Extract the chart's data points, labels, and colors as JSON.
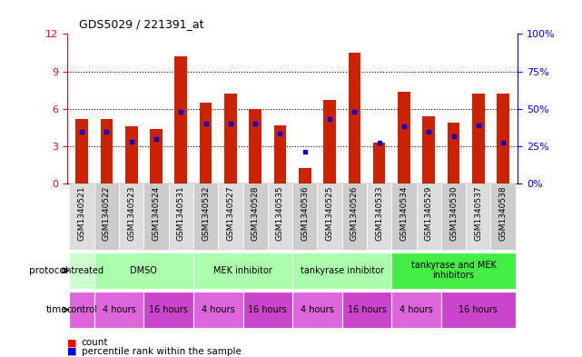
{
  "title": "GDS5029 / 221391_at",
  "samples": [
    "GSM1340521",
    "GSM1340522",
    "GSM1340523",
    "GSM1340524",
    "GSM1340531",
    "GSM1340532",
    "GSM1340527",
    "GSM1340528",
    "GSM1340535",
    "GSM1340536",
    "GSM1340525",
    "GSM1340526",
    "GSM1340533",
    "GSM1340534",
    "GSM1340529",
    "GSM1340530",
    "GSM1340537",
    "GSM1340538"
  ],
  "red_bars": [
    5.2,
    5.2,
    4.6,
    4.4,
    10.2,
    6.5,
    7.2,
    6.0,
    4.7,
    1.3,
    6.7,
    10.5,
    3.3,
    7.4,
    5.4,
    4.9,
    7.2,
    7.2
  ],
  "blue_dots": [
    4.2,
    4.2,
    3.4,
    3.6,
    5.8,
    4.8,
    4.8,
    4.8,
    4.0,
    2.6,
    5.2,
    5.8,
    3.3,
    4.6,
    4.2,
    3.8,
    4.7,
    3.3
  ],
  "ylim_left": [
    0,
    12
  ],
  "yticks_left": [
    0,
    3,
    6,
    9,
    12
  ],
  "yticks_right": [
    0,
    25,
    50,
    75,
    100
  ],
  "bar_color": "#cc2200",
  "dot_color": "#0000cc",
  "tick_bg_colors": [
    "#dddddd",
    "#cccccc",
    "#dddddd",
    "#cccccc",
    "#dddddd",
    "#cccccc",
    "#dddddd",
    "#cccccc",
    "#dddddd",
    "#cccccc",
    "#dddddd",
    "#cccccc",
    "#dddddd",
    "#cccccc",
    "#dddddd",
    "#cccccc",
    "#dddddd",
    "#cccccc"
  ],
  "proto_groups": [
    {
      "label": "untreated",
      "cols": [
        0,
        1
      ],
      "color": "#ccffcc"
    },
    {
      "label": "DMSO",
      "cols": [
        1,
        5
      ],
      "color": "#aaffaa"
    },
    {
      "label": "MEK inhibitor",
      "cols": [
        5,
        9
      ],
      "color": "#aaffaa"
    },
    {
      "label": "tankyrase inhibitor",
      "cols": [
        9,
        13
      ],
      "color": "#aaffaa"
    },
    {
      "label": "tankyrase and MEK\ninhibitors",
      "cols": [
        13,
        18
      ],
      "color": "#44ee44"
    }
  ],
  "time_groups": [
    {
      "label": "control",
      "cols": [
        0,
        1
      ],
      "color": "#dd66dd"
    },
    {
      "label": "4 hours",
      "cols": [
        1,
        3
      ],
      "color": "#dd66dd"
    },
    {
      "label": "16 hours",
      "cols": [
        3,
        5
      ],
      "color": "#cc44cc"
    },
    {
      "label": "4 hours",
      "cols": [
        5,
        7
      ],
      "color": "#dd66dd"
    },
    {
      "label": "16 hours",
      "cols": [
        7,
        9
      ],
      "color": "#cc44cc"
    },
    {
      "label": "4 hours",
      "cols": [
        9,
        11
      ],
      "color": "#dd66dd"
    },
    {
      "label": "16 hours",
      "cols": [
        11,
        13
      ],
      "color": "#cc44cc"
    },
    {
      "label": "4 hours",
      "cols": [
        13,
        15
      ],
      "color": "#dd66dd"
    },
    {
      "label": "16 hours",
      "cols": [
        15,
        18
      ],
      "color": "#cc44cc"
    }
  ]
}
